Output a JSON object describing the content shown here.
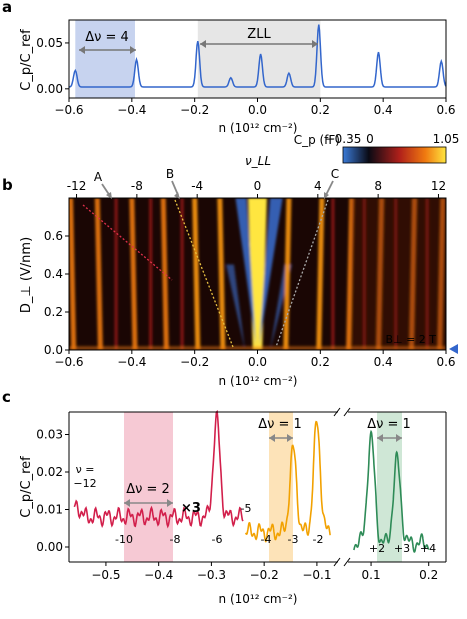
{
  "colors": {
    "line_a": "#3366cc",
    "band_blue": "#c7d3ef",
    "band_gray": "#e6e6e6",
    "line_c_red": "#d21f4b",
    "line_c_orange": "#f2a100",
    "line_c_green": "#2e8b57",
    "band_pink": "#f6c9d4",
    "band_orange": "#fde3b8",
    "band_green": "#cfe7d6",
    "arrow_gray": "#888888",
    "label_gray": "#999999",
    "marker_blue": "#3366cc"
  },
  "chart_data": [
    {
      "panel": "a",
      "type": "line",
      "ylabel": "C_p/C_ref",
      "xlabel": "n (10¹² cm⁻²)",
      "xlim": [
        -0.6,
        0.6
      ],
      "ylim": [
        -0.01,
        0.075
      ],
      "xticks": [
        "−0.6",
        "−0.4",
        "−0.2",
        "0.0",
        "0.2",
        "0.4",
        "0.6"
      ],
      "yticks": [
        "0.00",
        "0.05"
      ],
      "annotations": [
        "Δν = 4",
        "ZLL"
      ],
      "bands": [
        {
          "label": "Δν = 4",
          "x": [
            -0.58,
            -0.39
          ]
        },
        {
          "label": "ZLL",
          "x": [
            -0.19,
            0.2
          ]
        }
      ],
      "peaks": [
        {
          "x": -0.58,
          "y": 0.02
        },
        {
          "x": -0.385,
          "y": 0.032
        },
        {
          "x": -0.19,
          "y": 0.052
        },
        {
          "x": -0.085,
          "y": 0.012
        },
        {
          "x": 0.01,
          "y": 0.038
        },
        {
          "x": 0.1,
          "y": 0.017
        },
        {
          "x": 0.195,
          "y": 0.07
        },
        {
          "x": 0.385,
          "y": 0.04
        },
        {
          "x": 0.585,
          "y": 0.03
        }
      ],
      "baseline": 0.002
    },
    {
      "panel": "b",
      "type": "heatmap",
      "colorbar_label": "C_p (fF)",
      "colorbar_ticks": [
        "−0.35",
        "0",
        "1.05"
      ],
      "ylabel": "D_⊥ (V/nm)",
      "xlabel": "n (10¹² cm⁻²)",
      "top_axis_label": "ν_LL",
      "xlim": [
        -0.6,
        0.6
      ],
      "ylim": [
        0.0,
        0.8
      ],
      "xticks": [
        "−0.6",
        "−0.4",
        "−0.2",
        "0.0",
        "0.2",
        "0.4",
        "0.6"
      ],
      "yticks": [
        "0.0",
        "0.2",
        "0.4",
        "0.6"
      ],
      "top_ticks": [
        "-12",
        "-8",
        "-4",
        "0",
        "4",
        "8",
        "12"
      ],
      "arrow_labels": [
        "A",
        "B",
        "C"
      ],
      "field_label": "B⊥ = 2 T"
    },
    {
      "panel": "c",
      "type": "line",
      "ylabel": "C_p/C_ref",
      "xlabel": "n (10¹² cm⁻²)",
      "ylim": [
        -0.004,
        0.036
      ],
      "yticks": [
        "0.00",
        "0.01",
        "0.02",
        "0.03"
      ],
      "xticks": [
        "−0.5",
        "−0.4",
        "−0.3",
        "−0.2",
        "−0.1",
        "0.1",
        "0.2"
      ],
      "annotations": [
        "Δν = 2",
        "Δν = 1",
        "Δν = 1",
        "×3"
      ],
      "nu_label_top": "ν =",
      "nu_label_bottom": "−12",
      "level_labels": [
        "-10",
        "-8",
        "-6",
        "-5",
        "-4",
        "-3",
        "-2",
        "+2",
        "+3",
        "+4"
      ],
      "series": [
        {
          "color_key": "red",
          "x_range": [
            -0.56,
            -0.24
          ],
          "peaks": [
            {
              "x": -0.29,
              "y": 0.034
            },
            {
              "x": -0.555,
              "y": 0.011
            }
          ],
          "baseline": 0.008
        },
        {
          "color_key": "orange",
          "x_range": [
            -0.235,
            -0.075
          ],
          "peaks": [
            {
              "x": -0.145,
              "y": 0.026
            },
            {
              "x": -0.1,
              "y": 0.033
            }
          ],
          "baseline": 0.004
        },
        {
          "color_key": "green",
          "x_range": [
            0.07,
            0.2
          ],
          "peaks": [
            {
              "x": 0.1,
              "y": 0.029
            },
            {
              "x": 0.145,
              "y": 0.023
            }
          ],
          "baseline": 0.001
        }
      ]
    }
  ]
}
